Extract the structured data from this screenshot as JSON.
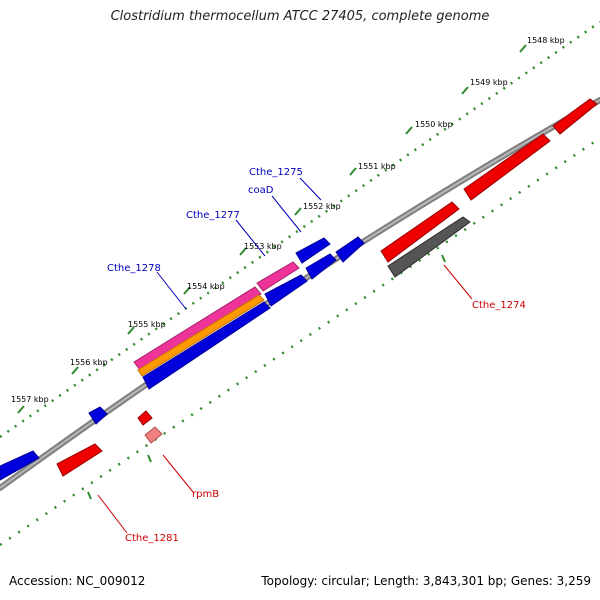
{
  "title": "Clostridium thermocellum ATCC 27405, complete genome",
  "footer": {
    "accession": "Accession: NC_009012",
    "topology": "Topology: circular; Length: 3,843,301 bp; Genes: 3,259"
  },
  "colors": {
    "backbone": "#808080",
    "tick": "#2e8b2e",
    "forward_gene": "#0000dd",
    "reverse_gene": "#ee0000",
    "pseudo_gene": "#555555",
    "rRNA_pink": "#ee3399",
    "orange": "#ff9900",
    "blue_label": "#0000bb",
    "red_label": "#cc0000"
  },
  "ruler": {
    "unit": "kbp",
    "labels": [
      "1548 kbp",
      "1549 kbp",
      "1550 kbp",
      "1551 kbp",
      "1552 kbp",
      "1553 kbp",
      "1554 kbp",
      "1555 kbp",
      "1556 kbp",
      "1557 kbp"
    ]
  },
  "genes": {
    "labels": {
      "cthe_1275": "Cthe_1275",
      "coaD": "coaD",
      "cthe_1277": "Cthe_1277",
      "cthe_1278": "Cthe_1278",
      "cthe_1274": "Cthe_1274",
      "rpmB": "rpmB",
      "cthe_1281": "Cthe_1281"
    }
  }
}
